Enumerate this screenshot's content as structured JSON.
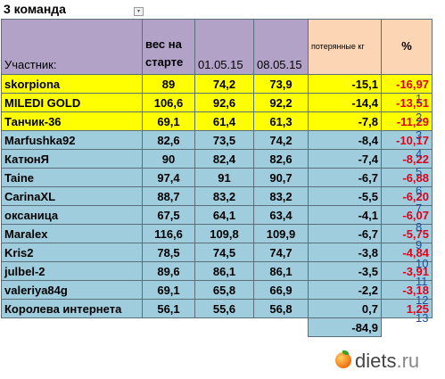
{
  "title": "3 команда",
  "headers": {
    "name": "Участник:",
    "start": "вес на старте",
    "d1": "01.05.15",
    "d2": "08.05.15",
    "loss": "потерянные кг",
    "pct": "%"
  },
  "rows": [
    {
      "name": "skorpiona",
      "start": "89",
      "d1": "74,2",
      "d2": "73,9",
      "loss": "-15,1",
      "pct": "-16,97",
      "rank": "1"
    },
    {
      "name": "MILEDI GOLD",
      "start": "106,6",
      "d1": "92,6",
      "d2": "92,2",
      "loss": "-14,4",
      "pct": "-13,51",
      "rank": "2"
    },
    {
      "name": "Танчик-36",
      "start": "69,1",
      "d1": "61,4",
      "d2": "61,3",
      "loss": "-7,8",
      "pct": "-11,29",
      "rank": "3"
    },
    {
      "name": "Marfushka92",
      "start": "82,6",
      "d1": "73,5",
      "d2": "74,2",
      "loss": "-8,4",
      "pct": "-10,17",
      "rank": "4"
    },
    {
      "name": "КатюнЯ",
      "start": "90",
      "d1": "82,4",
      "d2": "82,6",
      "loss": "-7,4",
      "pct": "-8,22",
      "rank": "5"
    },
    {
      "name": "Taine",
      "start": "97,4",
      "d1": "91",
      "d2": "90,7",
      "loss": "-6,7",
      "pct": "-6,88",
      "rank": "6"
    },
    {
      "name": "CarinaXL",
      "start": "88,7",
      "d1": "83,2",
      "d2": "83,2",
      "loss": "-5,5",
      "pct": "-6,20",
      "rank": "7"
    },
    {
      "name": "оксаница",
      "start": "67,5",
      "d1": "64,1",
      "d2": "63,4",
      "loss": "-4,1",
      "pct": "-6,07",
      "rank": "8"
    },
    {
      "name": "Maralex",
      "start": "116,6",
      "d1": "109,8",
      "d2": "109,9",
      "loss": "-6,7",
      "pct": "-5,75",
      "rank": "9"
    },
    {
      "name": "Kris2",
      "start": "78,5",
      "d1": "74,5",
      "d2": "74,7",
      "loss": "-3,8",
      "pct": "-4,84",
      "rank": "10"
    },
    {
      "name": "julbel-2",
      "start": "89,6",
      "d1": "86,1",
      "d2": "86,1",
      "loss": "-3,5",
      "pct": "-3,91",
      "rank": "11"
    },
    {
      "name": "valeriya84g",
      "start": "69,1",
      "d1": "65,8",
      "d2": "66,9",
      "loss": "-2,2",
      "pct": "-3,18",
      "rank": "12"
    },
    {
      "name": "Королева интернета",
      "start": "56,1",
      "d1": "55,6",
      "d2": "56,8",
      "loss": "0,7",
      "pct": "1,25",
      "rank": "13"
    }
  ],
  "total": "-84,9",
  "logo": {
    "name": "diets",
    "tld": ".ru"
  },
  "colors": {
    "header": "#b3a2c7",
    "yellow": "#ffff00",
    "blue": "#a0cddd",
    "loss_header": "#fcd5b4",
    "red": "#e0001b",
    "rank": "#1f4e9c"
  }
}
